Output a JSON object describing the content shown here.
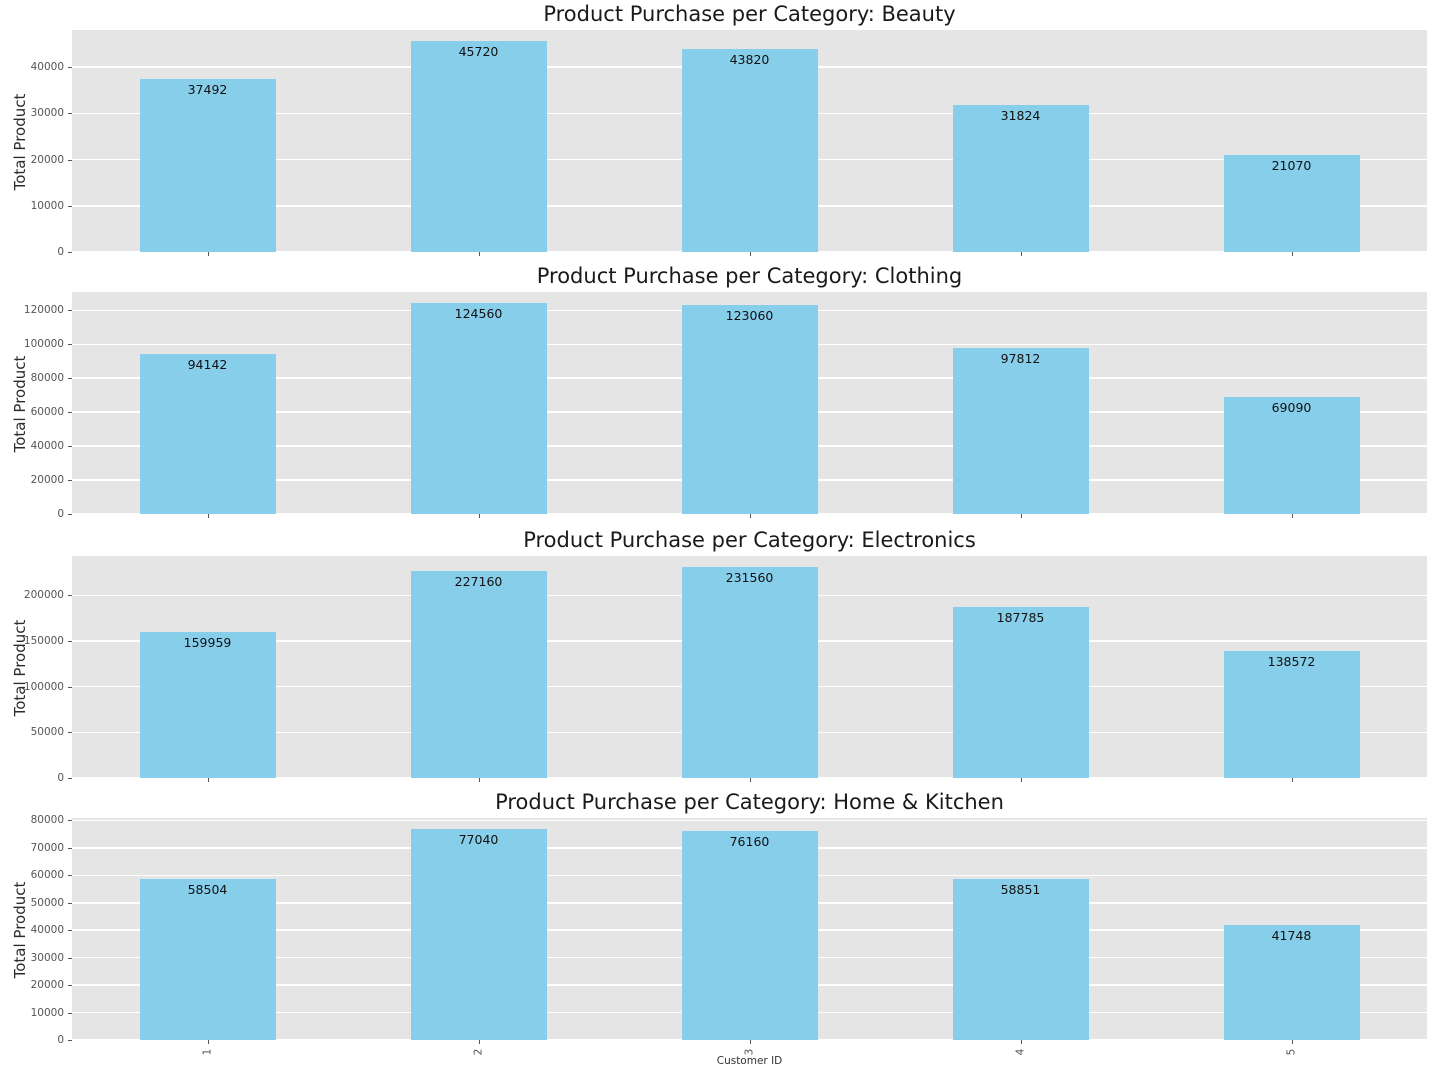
{
  "figure": {
    "xlabel": "Customer ID",
    "ylabel": "Total Product",
    "categories": [
      "1",
      "2",
      "3",
      "4",
      "5"
    ],
    "colors": {
      "bar": "#87ceeb",
      "plot_background": "#e5e5e5",
      "gridline": "#ffffff",
      "tick_text": "#555555",
      "title_text": "#1a1a1a",
      "figure_background": "#ffffff"
    }
  },
  "chart_data": [
    {
      "type": "bar",
      "title": "Product Purchase per Category: Beauty",
      "xlabel": "Customer ID",
      "ylabel": "Total Product",
      "categories": [
        "1",
        "2",
        "3",
        "4",
        "5"
      ],
      "values": [
        37492,
        45720,
        43820,
        31824,
        21070
      ],
      "data_labels": [
        "37492",
        "45720",
        "43820",
        "31824",
        "21070"
      ],
      "yticks": [
        0,
        10000,
        20000,
        30000,
        40000
      ],
      "ylim": [
        0,
        48006
      ],
      "grid": true,
      "legend": false
    },
    {
      "type": "bar",
      "title": "Product Purchase per Category: Clothing",
      "xlabel": "Customer ID",
      "ylabel": "Total Product",
      "categories": [
        "1",
        "2",
        "3",
        "4",
        "5"
      ],
      "values": [
        94142,
        124560,
        123060,
        97812,
        69090
      ],
      "data_labels": [
        "94142",
        "124560",
        "123060",
        "97812",
        "69090"
      ],
      "yticks": [
        0,
        20000,
        40000,
        60000,
        80000,
        100000,
        120000
      ],
      "ylim": [
        0,
        130788
      ],
      "grid": true,
      "legend": false
    },
    {
      "type": "bar",
      "title": "Product Purchase per Category: Electronics",
      "xlabel": "Customer ID",
      "ylabel": "Total Product",
      "categories": [
        "1",
        "2",
        "3",
        "4",
        "5"
      ],
      "values": [
        159959,
        227160,
        231560,
        187785,
        138572
      ],
      "data_labels": [
        "159959",
        "227160",
        "231560",
        "187785",
        "138572"
      ],
      "yticks": [
        0,
        50000,
        100000,
        150000,
        200000
      ],
      "ylim": [
        0,
        243138
      ],
      "grid": true,
      "legend": false
    },
    {
      "type": "bar",
      "title": "Product Purchase per Category: Home & Kitchen",
      "xlabel": "Customer ID",
      "ylabel": "Total Product",
      "categories": [
        "1",
        "2",
        "3",
        "4",
        "5"
      ],
      "values": [
        58504,
        77040,
        76160,
        58851,
        41748
      ],
      "data_labels": [
        "58504",
        "77040",
        "76160",
        "58851",
        "41748"
      ],
      "yticks": [
        0,
        10000,
        20000,
        30000,
        40000,
        50000,
        60000,
        70000,
        80000
      ],
      "ylim": [
        0,
        80892
      ],
      "grid": true,
      "legend": false
    }
  ]
}
